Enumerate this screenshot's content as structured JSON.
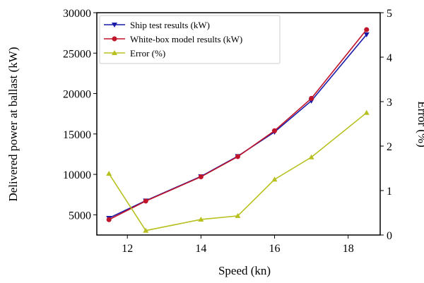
{
  "chart_data": {
    "type": "line",
    "xlabel": "Speed (kn)",
    "ylabel": "Delivered power at ballast (kW)",
    "y2label": "Error (%)",
    "x": [
      11.5,
      12.5,
      14,
      15,
      16,
      17,
      18.5
    ],
    "xlim": [
      11.17,
      18.87
    ],
    "ylim": [
      2500,
      30000
    ],
    "y2lim": [
      0,
      5
    ],
    "xticks": [
      12,
      14,
      16,
      18
    ],
    "yticks": [
      5000,
      10000,
      15000,
      20000,
      25000,
      30000
    ],
    "y2ticks": [
      0,
      1,
      2,
      3,
      4,
      5
    ],
    "legend_position": "top-left",
    "series": [
      {
        "name": "Ship test results (kW)",
        "axis": "left",
        "color": "#1a1aa8",
        "marker": "triangle-down",
        "values": [
          4600,
          6750,
          9750,
          12250,
          15250,
          19100,
          27300
        ]
      },
      {
        "name": "White-box model results (kW)",
        "axis": "left",
        "color": "#c0142a",
        "marker": "circle",
        "values": [
          4400,
          6700,
          9700,
          12200,
          15400,
          19400,
          27900
        ]
      },
      {
        "name": "Error (%)",
        "axis": "right",
        "color": "#b8c020",
        "marker": "triangle-up",
        "values": [
          1.38,
          0.1,
          0.35,
          0.43,
          1.25,
          1.75,
          2.75
        ]
      }
    ]
  }
}
